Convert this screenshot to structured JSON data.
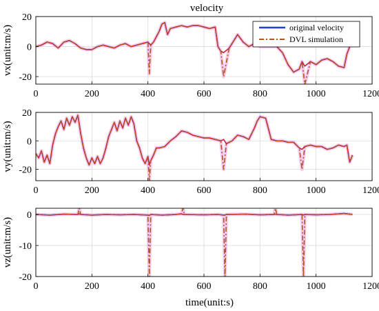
{
  "figure": {
    "title": "velocity",
    "x_axis_label": "time(unit:s)"
  },
  "legend": {
    "items": [
      {
        "label": "original velocity",
        "color": "#1f3fd6",
        "style": "solid"
      },
      {
        "label": "DVL simulation",
        "color": "#b5541a",
        "style": "dashdot"
      }
    ]
  },
  "colors": {
    "original": "#1f3fd6",
    "dvl": "#b5541a",
    "dvl_glow": "#e8a0e8",
    "red_overlay": "#e82020",
    "grid": "#d9d9d9"
  },
  "chart_data": [
    {
      "type": "line",
      "id": "vx",
      "title": "velocity",
      "ylabel": "vx(unit:m/s)",
      "xlabel": "",
      "xlim": [
        0,
        1200
      ],
      "ylim": [
        -25,
        20
      ],
      "xticks": [
        0,
        200,
        400,
        600,
        800,
        1000,
        1200
      ],
      "yticks": [
        20,
        0,
        -20
      ],
      "grid": true,
      "legend_position": "top-right",
      "x": [
        0,
        20,
        40,
        60,
        80,
        100,
        120,
        140,
        160,
        180,
        200,
        220,
        240,
        260,
        280,
        300,
        320,
        340,
        360,
        380,
        400,
        405,
        410,
        420,
        440,
        450,
        460,
        470,
        480,
        500,
        520,
        540,
        560,
        580,
        600,
        620,
        640,
        650,
        660,
        670,
        690,
        700,
        720,
        740,
        760,
        780,
        800,
        820,
        840,
        860,
        880,
        900,
        920,
        940,
        950,
        960,
        980,
        1000,
        1020,
        1040,
        1060,
        1080,
        1100,
        1110,
        1120,
        1130
      ],
      "series": [
        {
          "name": "original velocity",
          "values": [
            0,
            1,
            3,
            2,
            -1,
            3,
            4,
            2,
            -1,
            -2,
            -2,
            0,
            1,
            0,
            -1,
            1,
            2,
            0,
            1,
            2,
            3,
            2,
            1,
            3,
            10,
            15,
            16,
            8,
            12,
            13,
            14,
            13,
            14,
            14,
            13,
            12,
            13,
            0,
            -3,
            -4,
            -1,
            2,
            8,
            3,
            0,
            2,
            0,
            0,
            0,
            0,
            -4,
            -12,
            -17,
            -15,
            -10,
            -13,
            -10,
            -12,
            -9,
            -8,
            -10,
            -13,
            -14,
            -5,
            0,
            1
          ]
        },
        {
          "name": "DVL simulation",
          "values": [
            0,
            1,
            3,
            2,
            -1,
            3,
            4,
            2,
            -1,
            -2,
            -2,
            0,
            1,
            0,
            -1,
            1,
            2,
            0,
            1,
            2,
            3,
            -18,
            1,
            3,
            10,
            15,
            16,
            8,
            12,
            13,
            14,
            13,
            14,
            14,
            13,
            12,
            13,
            0,
            -3,
            -20,
            -1,
            2,
            8,
            3,
            0,
            2,
            0,
            0,
            0,
            0,
            -4,
            -12,
            -17,
            -15,
            -10,
            -25,
            -10,
            -12,
            -9,
            -8,
            -10,
            -13,
            -14,
            -5,
            0,
            1
          ]
        }
      ]
    },
    {
      "type": "line",
      "id": "vy",
      "ylabel": "vy(unit:m/s)",
      "xlabel": "",
      "xlim": [
        0,
        1200
      ],
      "ylim": [
        -28,
        20
      ],
      "xticks": [
        0,
        200,
        400,
        600,
        800,
        1000,
        1200
      ],
      "yticks": [
        20,
        0,
        -20
      ],
      "grid": true,
      "x": [
        0,
        10,
        20,
        30,
        40,
        50,
        60,
        70,
        80,
        90,
        100,
        110,
        120,
        130,
        140,
        150,
        160,
        170,
        180,
        190,
        200,
        210,
        220,
        230,
        240,
        250,
        260,
        270,
        280,
        290,
        300,
        310,
        320,
        330,
        340,
        350,
        360,
        370,
        380,
        390,
        400,
        405,
        410,
        420,
        430,
        440,
        460,
        480,
        500,
        520,
        540,
        560,
        580,
        600,
        620,
        640,
        660,
        670,
        680,
        700,
        720,
        740,
        760,
        780,
        790,
        800,
        820,
        840,
        860,
        880,
        900,
        920,
        940,
        950,
        960,
        980,
        1000,
        1020,
        1040,
        1060,
        1080,
        1100,
        1110,
        1120,
        1130
      ],
      "series": [
        {
          "name": "original velocity",
          "values": [
            -9,
            -12,
            -7,
            -15,
            -10,
            -16,
            -3,
            5,
            10,
            14,
            8,
            16,
            11,
            17,
            13,
            18,
            5,
            -5,
            -12,
            -17,
            -12,
            -16,
            -11,
            -16,
            -12,
            -5,
            3,
            8,
            13,
            7,
            14,
            9,
            16,
            11,
            17,
            12,
            0,
            -5,
            -12,
            -16,
            -11,
            -17,
            -14,
            -10,
            -5,
            -5,
            -4,
            0,
            3,
            7,
            6,
            4,
            3,
            2,
            2,
            1,
            0,
            1,
            -2,
            0,
            4,
            3,
            1,
            9,
            14,
            17,
            16,
            1,
            0,
            0,
            -1,
            -1,
            -5,
            -6,
            -4,
            -3,
            -4,
            -4,
            -6,
            -5,
            -3,
            -4,
            -3,
            -15,
            -10
          ]
        },
        {
          "name": "DVL simulation",
          "values": [
            -9,
            -12,
            -7,
            -15,
            -10,
            -16,
            -3,
            5,
            10,
            14,
            8,
            16,
            11,
            17,
            13,
            18,
            5,
            -5,
            -12,
            -17,
            -12,
            -16,
            -11,
            -16,
            -12,
            -5,
            3,
            8,
            13,
            7,
            14,
            9,
            16,
            11,
            17,
            12,
            0,
            -5,
            -12,
            -16,
            -11,
            -28,
            -14,
            -10,
            -5,
            -5,
            -4,
            0,
            3,
            7,
            6,
            4,
            3,
            2,
            2,
            1,
            0,
            -20,
            -2,
            0,
            4,
            3,
            1,
            9,
            14,
            17,
            16,
            1,
            0,
            0,
            -1,
            -1,
            -5,
            -20,
            -4,
            -3,
            -4,
            -4,
            -6,
            -5,
            -3,
            -4,
            -3,
            -15,
            -10
          ]
        }
      ]
    },
    {
      "type": "line",
      "id": "vz",
      "ylabel": "vz(unit:m/s)",
      "xlabel": "time(unit:s)",
      "xlim": [
        0,
        1200
      ],
      "ylim": [
        -20,
        2
      ],
      "xticks": [
        0,
        200,
        400,
        600,
        800,
        1000,
        1200
      ],
      "yticks": [
        0,
        -10,
        -20
      ],
      "grid": true,
      "x": [
        0,
        50,
        100,
        150,
        155,
        160,
        200,
        250,
        300,
        350,
        400,
        405,
        410,
        450,
        500,
        520,
        525,
        530,
        600,
        650,
        670,
        675,
        680,
        750,
        800,
        850,
        855,
        860,
        900,
        950,
        955,
        960,
        1000,
        1050,
        1100,
        1130
      ],
      "series": [
        {
          "name": "original velocity",
          "values": [
            0,
            -0.2,
            0.1,
            0,
            0.2,
            0,
            -0.2,
            0,
            -0.1,
            0,
            -0.2,
            -0.3,
            0,
            -0.2,
            0,
            0.2,
            0,
            0,
            -0.1,
            0,
            -0.2,
            -0.2,
            0,
            0.1,
            -0.1,
            0,
            0.1,
            0,
            -0.2,
            0,
            -0.2,
            0,
            -0.1,
            0,
            0.3,
            0
          ]
        },
        {
          "name": "DVL simulation",
          "values": [
            0,
            -0.2,
            0.1,
            0,
            2,
            0,
            -0.2,
            0,
            -0.1,
            0,
            -0.2,
            -20,
            0,
            -0.2,
            0,
            0.2,
            2,
            0,
            -0.1,
            0,
            -0.2,
            -20,
            0,
            0.1,
            -0.1,
            0,
            2,
            0,
            -0.2,
            0,
            -20,
            0,
            -0.1,
            0,
            0.3,
            0
          ]
        }
      ]
    }
  ]
}
